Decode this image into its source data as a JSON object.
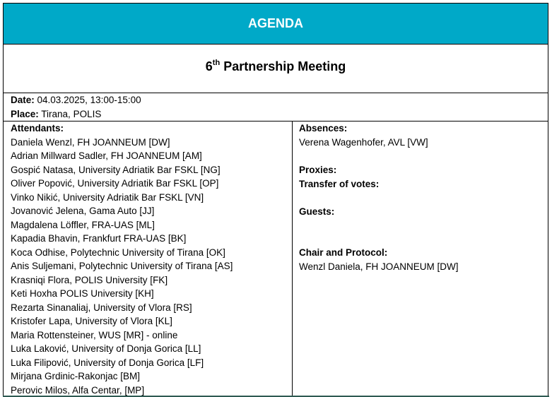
{
  "header": {
    "title": "AGENDA"
  },
  "title": {
    "ordinal": "6",
    "suffix": "th",
    "text": "Partnership Meeting"
  },
  "info": {
    "date": {
      "label": "Date:",
      "value": "04.03.2025, 13:00-15:00"
    },
    "place": {
      "label": "Place:",
      "value": "Tirana, POLIS"
    }
  },
  "attendants": {
    "label": "Attendants:",
    "items": [
      "Daniela Wenzl, FH JOANNEUM [DW]",
      "Adrian Millward Sadler, FH JOANNEUM [AM]",
      "Gospić Natasa, University Adriatik Bar FSKL [NG]",
      "Oliver Popović, University Adriatik Bar FSKL [OP]",
      "Vinko Nikić, University Adriatik Bar FSKL [VN]",
      "Jovanović Jelena, Gama Auto [JJ]",
      "Magdalena Löffler, FRA-UAS [ML]",
      "Kapadia Bhavin, Frankfurt FRA-UAS [BK]",
      "Koca Odhise, Polytechnic University of Tirana [OK]",
      "Anis Suljemani, Polytechnic University of Tirana [AS]",
      "Krasniqi Flora, POLIS University [FK]",
      "Keti Hoxha POLIS University [KH]",
      "Rezarta Sinanaliaj, University of Vlora [RS]",
      "Kristofer Lapa, University of Vlora [KL]",
      "Maria Rottensteiner, WUS [MR] - online",
      "Luka Laković, University of Donja Gorica [LL]",
      "Luka Filipović, University of Donja Gorica [LF]",
      "Mirjana Grdinic-Rakonjac [BM]",
      "Perovic Milos, Alfa Centar, [MP]"
    ]
  },
  "absences": {
    "label": "Absences:",
    "items": [
      "Verena Wagenhofer, AVL [VW]"
    ]
  },
  "proxies": {
    "label": "Proxies:"
  },
  "transfer_of_votes": {
    "label": "Transfer of votes:"
  },
  "guests": {
    "label": "Guests:"
  },
  "chair": {
    "label": "Chair and Protocol:",
    "value": "Wenzl Daniela, FH JOANNEUM [DW]"
  }
}
